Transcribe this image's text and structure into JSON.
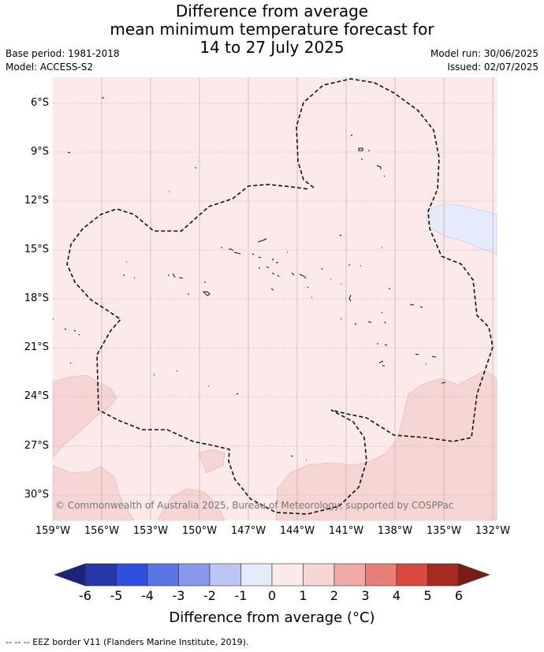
{
  "title": {
    "line1": "Difference from average",
    "line2": "mean minimum temperature forecast for",
    "line3": "14 to 27 July 2025"
  },
  "meta": {
    "base_period": "Base period: 1981-2018",
    "model": "Model: ACCESS-S2",
    "model_run": "Model run: 30/06/2025",
    "issued": "Issued: 02/07/2025"
  },
  "map": {
    "lon_labels": [
      "159°W",
      "156°W",
      "153°W",
      "150°W",
      "147°W",
      "144°W",
      "141°W",
      "138°W",
      "135°W",
      "132°W"
    ],
    "lat_labels": [
      "6°S",
      "9°S",
      "12°S",
      "15°S",
      "18°S",
      "21°S",
      "24°S",
      "27°S",
      "30°S"
    ],
    "copyright": "© Commonwealth of Australia 2025, Bureau of Meteorology, supported by COSPPac",
    "background_color": "#fbeae9",
    "anomaly_0_1_color": "#fbeae9",
    "anomaly_1_2_color": "#f5d6d4",
    "anomaly_neg1_0_color": "#e6ebfb"
  },
  "colorbar": {
    "ticks": [
      "-6",
      "-5",
      "-4",
      "-3",
      "-2",
      "-1",
      "0",
      "1",
      "2",
      "3",
      "4",
      "5",
      "6"
    ],
    "colors": [
      "#2536a6",
      "#2f4fe0",
      "#5b74e6",
      "#8898ec",
      "#bcc6f5",
      "#e6ebfb",
      "#fbeae9",
      "#f5d6d4",
      "#efaaa6",
      "#e87e78",
      "#d94940",
      "#a62a22"
    ],
    "under_color": "#1a237e",
    "over_color": "#7a1c16",
    "label": "Difference from average (°C)"
  },
  "footnote": "--  --  -- EEZ border V11 (Flanders Marine Institute, 2019)."
}
